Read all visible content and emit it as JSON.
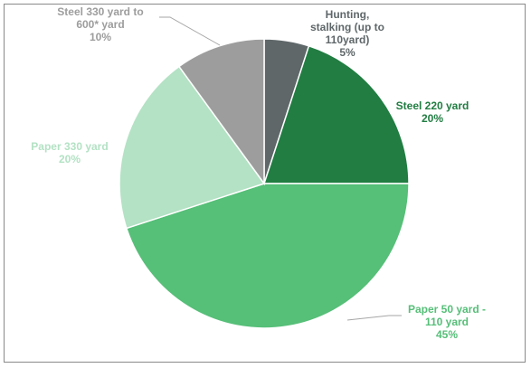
{
  "chart_data": {
    "type": "pie",
    "title": "",
    "start_angle_deg": 0,
    "direction": "clockwise",
    "slices": [
      {
        "label_lines": [
          "Hunting,",
          "stalking (up to",
          "110yard)"
        ],
        "percent_label": "5%",
        "value": 5,
        "color": "#5f6769",
        "label_color": "#5f6769"
      },
      {
        "label_lines": [
          "Steel 220 yard"
        ],
        "percent_label": "20%",
        "value": 20,
        "color": "#217d42",
        "label_color": "#217d42"
      },
      {
        "label_lines": [
          "Paper 50 yard -",
          "110 yard"
        ],
        "percent_label": "45%",
        "value": 45,
        "color": "#56bf78",
        "label_color": "#56bf78"
      },
      {
        "label_lines": [
          "Paper 330 yard"
        ],
        "percent_label": "20%",
        "value": 20,
        "color": "#b3e2c4",
        "label_color": "#b3e2c4"
      },
      {
        "label_lines": [
          "Steel 330 yard to",
          "600* yard"
        ],
        "percent_label": "10%",
        "value": 10,
        "color": "#9d9d9d",
        "label_color": "#9d9d9d"
      }
    ]
  }
}
